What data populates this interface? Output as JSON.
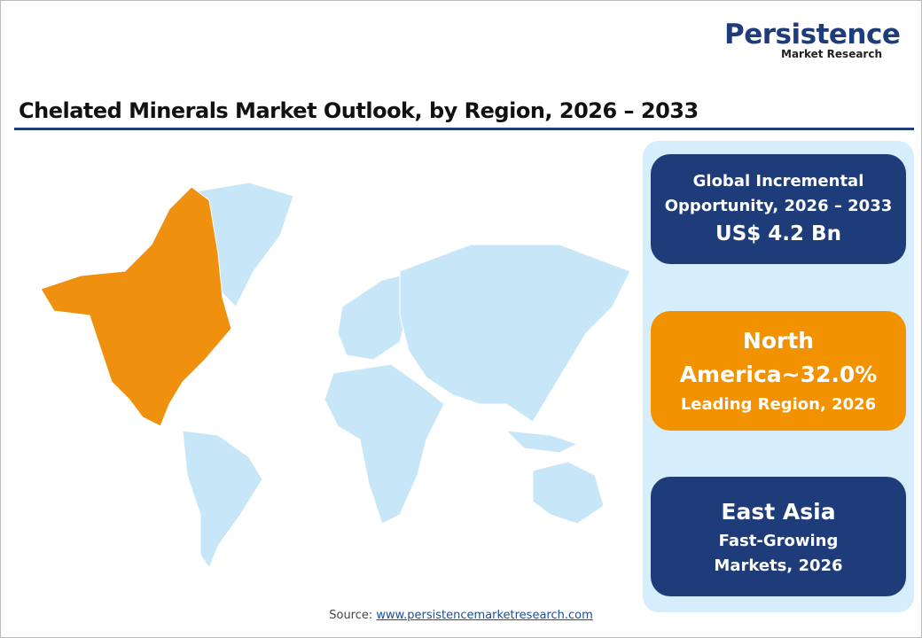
{
  "logo": {
    "name": "Persistence",
    "tagline": "Market Research"
  },
  "header": {
    "title": "Chelated Minerals Market Outlook, by Region, 2026 – 2033"
  },
  "cards": [
    {
      "heading": "Global Incremental Opportunity, 2026 – 2033",
      "value": "US$ 4.2 Bn"
    },
    {
      "heading": "North America~32.0%",
      "value": "Leading Region, 2026"
    },
    {
      "heading": "East Asia",
      "value": "Fast-Growing Markets, 2026"
    }
  ],
  "source": {
    "label": "Source:",
    "link": "www.persistencemarketresearch.com"
  }
}
